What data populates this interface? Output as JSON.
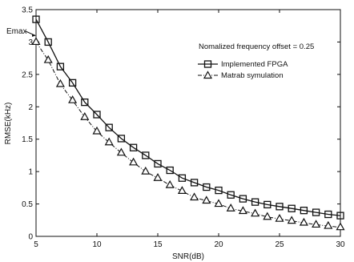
{
  "chart_data": {
    "type": "line",
    "title": "",
    "xlabel": "SNR(dB)",
    "ylabel": "RMSE(kHz)",
    "xlim": [
      5,
      30
    ],
    "ylim": [
      0,
      3.5
    ],
    "xticks": [
      5,
      10,
      15,
      20,
      25,
      30
    ],
    "yticks": [
      0,
      0.5,
      1,
      1.5,
      2,
      2.5,
      3,
      3.5
    ],
    "grid": false,
    "legend_position": "top-right",
    "annotation_text": "Nomalized frequency offset = 0.25",
    "emax_label": "Emax",
    "emax_value": 3.1,
    "x": [
      5,
      6,
      7,
      8,
      9,
      10,
      11,
      12,
      13,
      14,
      15,
      16,
      17,
      18,
      19,
      20,
      21,
      22,
      23,
      24,
      25,
      26,
      27,
      28,
      29,
      30
    ],
    "series": [
      {
        "name": "Implemented FPGA",
        "marker": "square",
        "line": "solid",
        "values": [
          3.35,
          3.0,
          2.62,
          2.37,
          2.07,
          1.88,
          1.68,
          1.51,
          1.37,
          1.25,
          1.12,
          1.02,
          0.9,
          0.83,
          0.76,
          0.71,
          0.64,
          0.58,
          0.53,
          0.49,
          0.46,
          0.43,
          0.4,
          0.37,
          0.34,
          0.32
        ]
      },
      {
        "name": "Matrab symulation",
        "marker": "triangle",
        "line": "dashdot",
        "values": [
          3.0,
          2.72,
          2.35,
          2.1,
          1.84,
          1.62,
          1.45,
          1.29,
          1.14,
          1.0,
          0.9,
          0.79,
          0.7,
          0.6,
          0.55,
          0.5,
          0.43,
          0.39,
          0.35,
          0.3,
          0.27,
          0.24,
          0.21,
          0.18,
          0.16,
          0.14
        ]
      }
    ]
  }
}
